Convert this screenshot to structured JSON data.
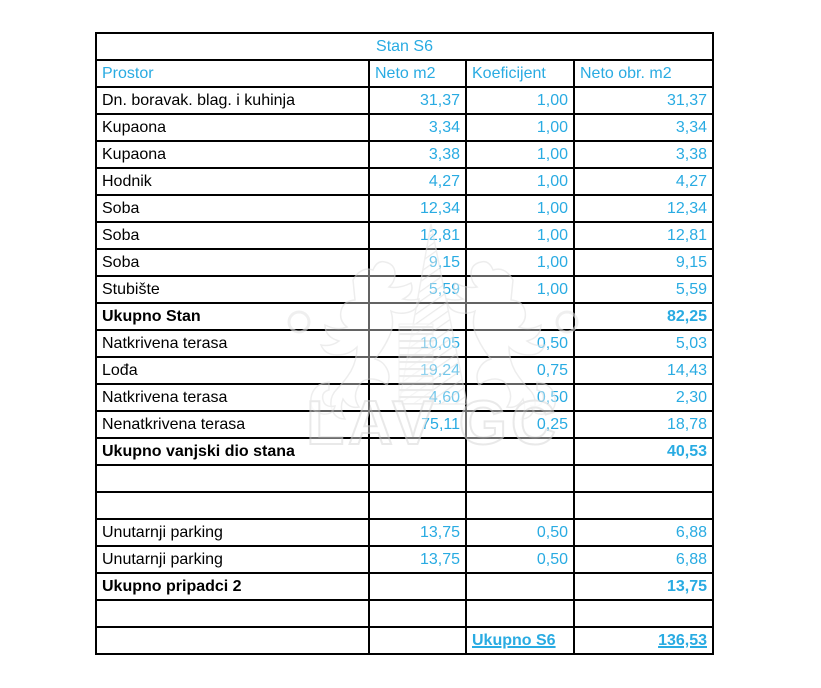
{
  "colors": {
    "accent": "#29ABE2",
    "grid": "#000000",
    "text": "#000000",
    "background": "#FFFFFF",
    "watermark_stroke": "#E3E3E3"
  },
  "table": {
    "title": "Stan S6",
    "columns": [
      "Prostor",
      "Neto m2",
      "Koeficijent",
      "Neto obr. m2"
    ],
    "rows": [
      {
        "type": "data",
        "cells": [
          "Dn. boravak. blag. i kuhinja",
          "31,37",
          "1,00",
          "31,37"
        ]
      },
      {
        "type": "data",
        "cells": [
          "Kupaona",
          "3,34",
          "1,00",
          "3,34"
        ]
      },
      {
        "type": "data",
        "cells": [
          "Kupaona",
          "3,38",
          "1,00",
          "3,38"
        ]
      },
      {
        "type": "data",
        "cells": [
          "Hodnik",
          "4,27",
          "1,00",
          "4,27"
        ]
      },
      {
        "type": "data",
        "cells": [
          "Soba",
          "12,34",
          "1,00",
          "12,34"
        ]
      },
      {
        "type": "data",
        "cells": [
          "Soba",
          "12,81",
          "1,00",
          "12,81"
        ]
      },
      {
        "type": "data",
        "cells": [
          "Soba",
          "9,15",
          "1,00",
          "9,15"
        ]
      },
      {
        "type": "data",
        "cells": [
          "Stubište",
          "5,59",
          "1,00",
          "5,59"
        ]
      },
      {
        "type": "total",
        "cells": [
          "Ukupno Stan",
          "",
          "",
          "82,25"
        ]
      },
      {
        "type": "data",
        "cells": [
          "Natkrivena terasa",
          "10,05",
          "0,50",
          "5,03"
        ]
      },
      {
        "type": "data",
        "cells": [
          "Lođa",
          "19,24",
          "0,75",
          "14,43"
        ]
      },
      {
        "type": "data",
        "cells": [
          "Natkrivena terasa",
          "4,60",
          "0,50",
          "2,30"
        ]
      },
      {
        "type": "data",
        "cells": [
          "Nenatkrivena terasa",
          "75,11",
          "0,25",
          "18,78"
        ]
      },
      {
        "type": "total",
        "cells": [
          "Ukupno vanjski dio stana",
          "",
          "",
          "40,53"
        ]
      },
      {
        "type": "spacer",
        "cells": [
          "",
          "",
          "",
          ""
        ]
      },
      {
        "type": "data",
        "cells": [
          "",
          "",
          "",
          ""
        ]
      },
      {
        "type": "data",
        "cells": [
          "Unutarnji parking",
          "13,75",
          "0,50",
          "6,88"
        ]
      },
      {
        "type": "data",
        "cells": [
          "Unutarnji parking",
          "13,75",
          "0,50",
          "6,88"
        ]
      },
      {
        "type": "total",
        "cells": [
          "Ukupno pripadci 2",
          "",
          "",
          "13,75"
        ]
      },
      {
        "type": "data",
        "cells": [
          "",
          "",
          "",
          ""
        ]
      },
      {
        "type": "grand",
        "cells": [
          "",
          "",
          "Ukupno S6",
          "136,53"
        ]
      }
    ]
  },
  "watermark": {
    "text": "LAV GC"
  }
}
